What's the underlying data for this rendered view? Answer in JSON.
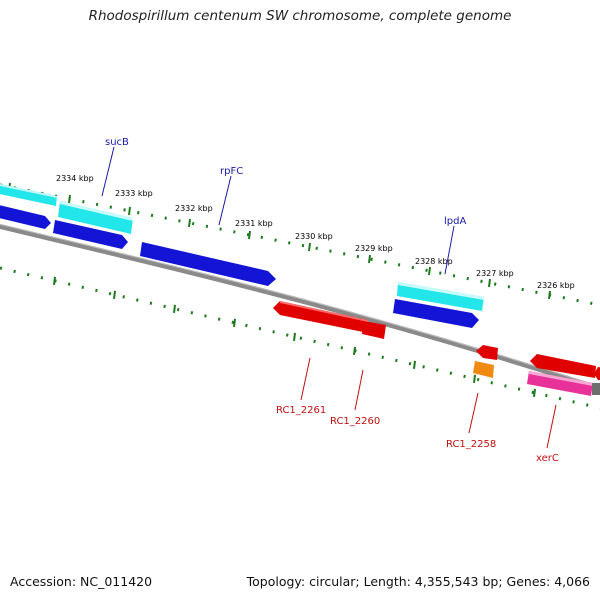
{
  "title": "Rhodospirillum centenum SW chromosome, complete genome",
  "footer": {
    "accession": "Accession: NC_011420",
    "summary": "Topology: circular; Length: 4,355,543 bp; Genes: 4,066"
  },
  "kbp_ticks": [
    "2334 kbp",
    "2333 kbp",
    "2332 kbp",
    "2331 kbp",
    "2330 kbp",
    "2329 kbp",
    "2328 kbp",
    "2327 kbp",
    "2326 kbp"
  ],
  "colors": {
    "backbone": "#8a8a8a",
    "tick": "#1e7a1e",
    "forward_gene": "#1414d6",
    "forward_cds": "#22e6ea",
    "reverse_gene": "#e00000",
    "reverse_cds": "#f08a10",
    "reverse_misc": "#e8329a",
    "forward_label": "#1a1aa8",
    "reverse_label": "#c01010"
  },
  "gene_labels": {
    "forward": [
      "sucB",
      "rpFC",
      "lpdA"
    ],
    "reverse": [
      "RC1_2261",
      "RC1_2260",
      "RC1_2258",
      "xerC"
    ]
  }
}
